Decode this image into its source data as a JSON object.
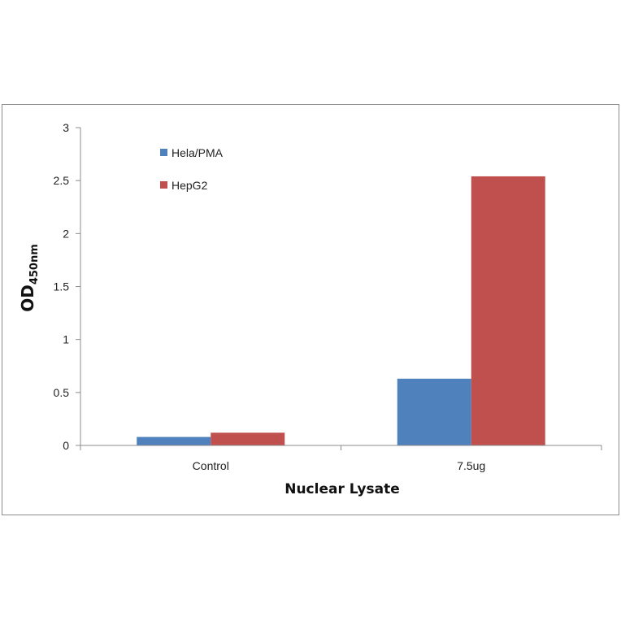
{
  "chart_data": {
    "type": "bar",
    "categories": [
      "Control",
      "7.5ug"
    ],
    "series": [
      {
        "name": "Hela/PMA",
        "values": [
          0.08,
          0.63
        ],
        "color": "#4f81bd"
      },
      {
        "name": "HepG2",
        "values": [
          0.12,
          2.54
        ],
        "color": "#c0504d"
      }
    ],
    "xlabel": "Nuclear Lysate",
    "ylabel": "OD",
    "ylabel_sub": "450nm",
    "ylim": [
      0,
      3
    ],
    "yticks": [
      "0",
      "0.5",
      "1",
      "1.5",
      "2",
      "2.5",
      "3"
    ],
    "ytick_values": [
      0,
      0.5,
      1,
      1.5,
      2,
      2.5,
      3
    ],
    "grid": false,
    "legend_position": "top-left"
  }
}
